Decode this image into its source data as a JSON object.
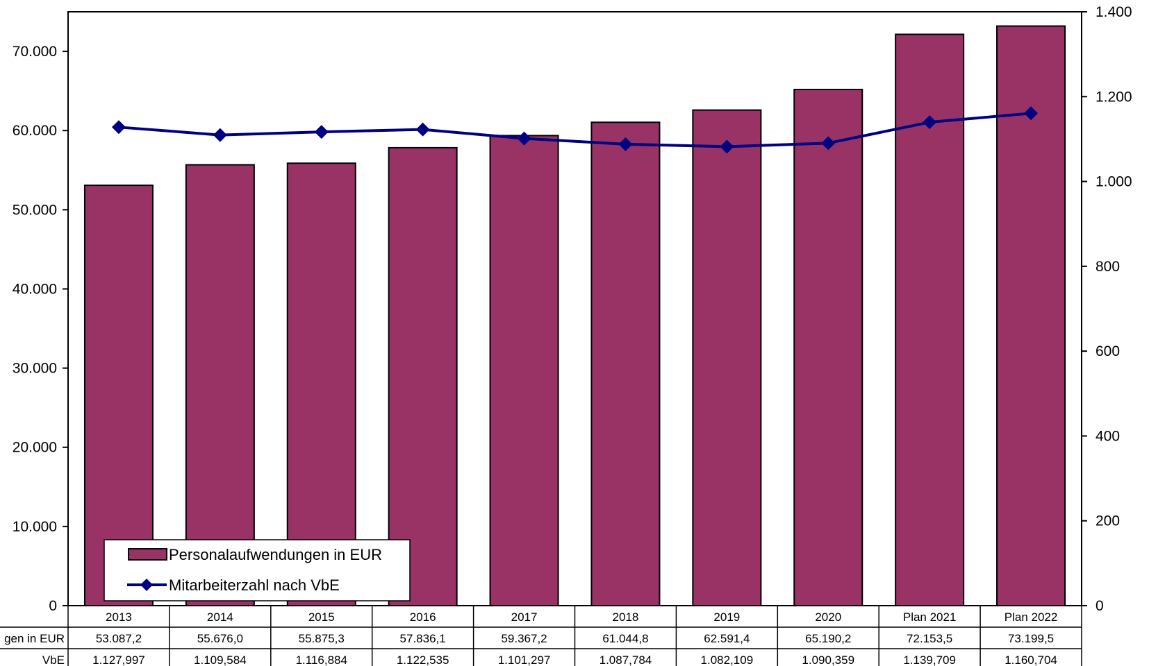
{
  "chart_data": {
    "type": "bar",
    "categories": [
      "2013",
      "2014",
      "2015",
      "2016",
      "2017",
      "2018",
      "2019",
      "2020",
      "Plan 2021",
      "Plan 2022"
    ],
    "series": [
      {
        "name": "Personalaufwendungen in EUR",
        "type": "bar",
        "axis": "left",
        "color": "#993366",
        "values": [
          53087.2,
          55676.0,
          55875.3,
          57836.1,
          59367.2,
          61044.8,
          62591.4,
          65190.2,
          72153.5,
          73199.5
        ]
      },
      {
        "name": "Mitarbeiterzahl nach VbE",
        "type": "line",
        "axis": "right",
        "color": "#000080",
        "marker": "diamond",
        "values": [
          1127.997,
          1109.584,
          1116.884,
          1122.535,
          1101.297,
          1087.784,
          1082.109,
          1090.359,
          1139.709,
          1160.704
        ]
      }
    ],
    "y_left": {
      "ylim": [
        0,
        75000
      ],
      "ticks": [
        0,
        10000,
        20000,
        30000,
        40000,
        50000,
        60000,
        70000
      ],
      "tick_labels": [
        "0",
        "10.000",
        "20.000",
        "30.000",
        "40.000",
        "50.000",
        "60.000",
        "70.000"
      ]
    },
    "y_right": {
      "ylim": [
        0,
        1400
      ],
      "ticks": [
        0,
        200,
        400,
        600,
        800,
        1000,
        1200,
        1400
      ],
      "tick_labels": [
        "0",
        "200",
        "400",
        "600",
        "800",
        "1.000",
        "1.200",
        "1.400"
      ]
    },
    "grid": false,
    "legend": {
      "position": "bottom-left",
      "entries": [
        "Personalaufwendungen in EUR",
        "Mitarbeiterzahl nach VbE"
      ]
    },
    "data_table": {
      "row_labels": [
        "gen in EUR",
        "VbE"
      ],
      "rows": [
        [
          "53.087,2",
          "55.676,0",
          "55.875,3",
          "57.836,1",
          "59.367,2",
          "61.044,8",
          "62.591,4",
          "65.190,2",
          "72.153,5",
          "73.199,5"
        ],
        [
          "1.127,997",
          "1.109,584",
          "1.116,884",
          "1.122,535",
          "1.101,297",
          "1.087,784",
          "1.082,109",
          "1.090,359",
          "1.139,709",
          "1.160,704"
        ]
      ]
    }
  }
}
